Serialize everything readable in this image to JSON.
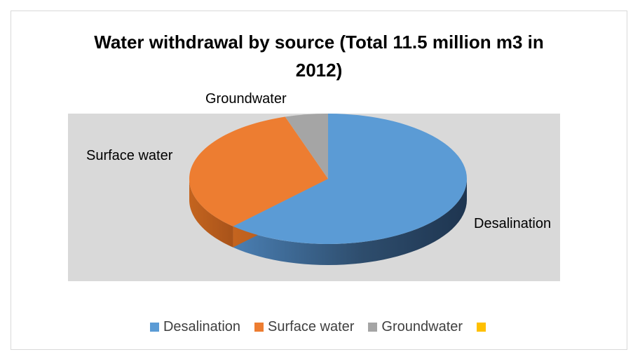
{
  "chart_data": {
    "type": "pie",
    "title_lines": [
      "Water withdrawal by source (Total 11.5 million m3 in",
      "2012)"
    ],
    "categories": [
      "Desalination",
      "Surface water",
      "Groundwater"
    ],
    "values": [
      62,
      33,
      5
    ],
    "value_unit": "percent",
    "colors": [
      "#5b9bd5",
      "#ed7d31",
      "#a5a5a5",
      "#ffc000"
    ],
    "style": "3d",
    "plot_background": "#d9d9d9",
    "legend_position": "bottom",
    "legend_entries": [
      "Desalination",
      "Surface water",
      "Groundwater",
      ""
    ]
  }
}
